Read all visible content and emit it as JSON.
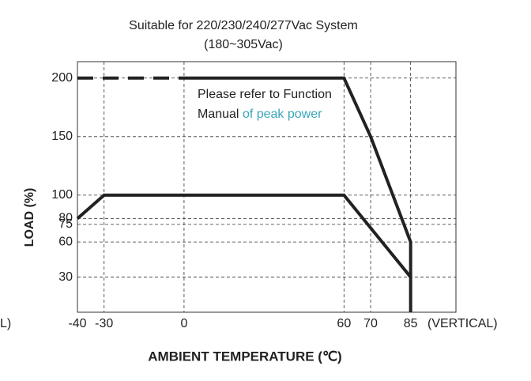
{
  "chart_data": {
    "type": "line",
    "title": "Suitable for 220/230/240/277Vac System",
    "subtitle": "(180~305Vac)",
    "x_label": "AMBIENT TEMPERATURE (℃)",
    "y_label": "LOAD (%)",
    "left_cut_text": "L)",
    "x_suffix": "(VERTICAL)",
    "note": {
      "line1": "Please refer to Function",
      "line2_a": "Manual",
      "line2_b": "of peak power",
      "color_b": "#3aa6b9"
    },
    "xlim": [
      -40,
      102
    ],
    "ylim": [
      0,
      214
    ],
    "xticks": [
      -40,
      -30,
      0,
      60,
      70,
      85
    ],
    "xtick_colors": [
      "#3aa6b9",
      "#222222",
      "#222222",
      "#3aa6b9",
      "#222222",
      "#3aa6b9"
    ],
    "yticks": [
      30,
      60,
      75,
      80,
      100,
      150,
      200
    ],
    "grid": true,
    "series": [
      {
        "color": "#222222",
        "dashed": true,
        "x": [
          -40,
          0
        ],
        "values": [
          200,
          200
        ]
      },
      {
        "color": "#222222",
        "dashed": false,
        "x": [
          0,
          60,
          70,
          85,
          85
        ],
        "values": [
          200,
          200,
          150,
          60,
          0
        ]
      },
      {
        "color": "#222222",
        "dashed": false,
        "x": [
          -40,
          -30,
          60,
          85
        ],
        "values": [
          80,
          100,
          100,
          30
        ]
      }
    ]
  }
}
